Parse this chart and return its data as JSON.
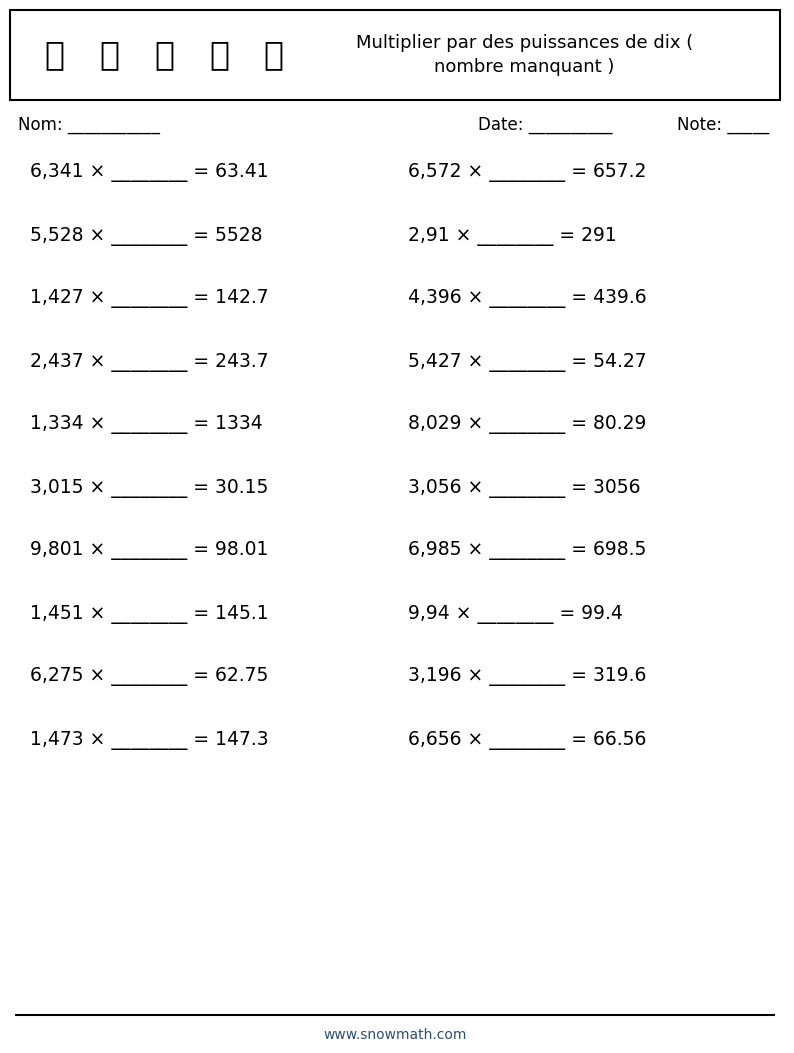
{
  "title_line1": "Multiplier par des puissances de dix (",
  "title_line2": "nombre manquant )",
  "header_box_color": "#ffffff",
  "header_border_color": "#000000",
  "background_color": "#ffffff",
  "text_color": "#000000",
  "nom_label": "Nom: ___________",
  "date_label": "Date: __________",
  "note_label": "Note: _____",
  "website": "www.snowmath.com",
  "exercises_left": [
    "6,341 × ________ = 63.41",
    "5,528 × ________ = 5528",
    "1,427 × ________ = 142.7",
    "2,437 × ________ = 243.7",
    "1,334 × ________ = 1334",
    "3,015 × ________ = 30.15",
    "9,801 × ________ = 98.01",
    "1,451 × ________ = 145.1",
    "6,275 × ________ = 62.75",
    "1,473 × ________ = 147.3"
  ],
  "exercises_right": [
    "6,572 × ________ = 657.2",
    "2,91 × ________ = 291",
    "4,396 × ________ = 439.6",
    "5,427 × ________ = 54.27",
    "8,029 × ________ = 80.29",
    "3,056 × ________ = 3056",
    "6,985 × ________ = 698.5",
    "9,94 × ________ = 99.4",
    "3,196 × ________ = 319.6",
    "6,656 × ________ = 66.56"
  ],
  "font_size_exercises": 13.5,
  "font_size_header": 13,
  "font_size_labels": 12,
  "font_size_website": 10
}
